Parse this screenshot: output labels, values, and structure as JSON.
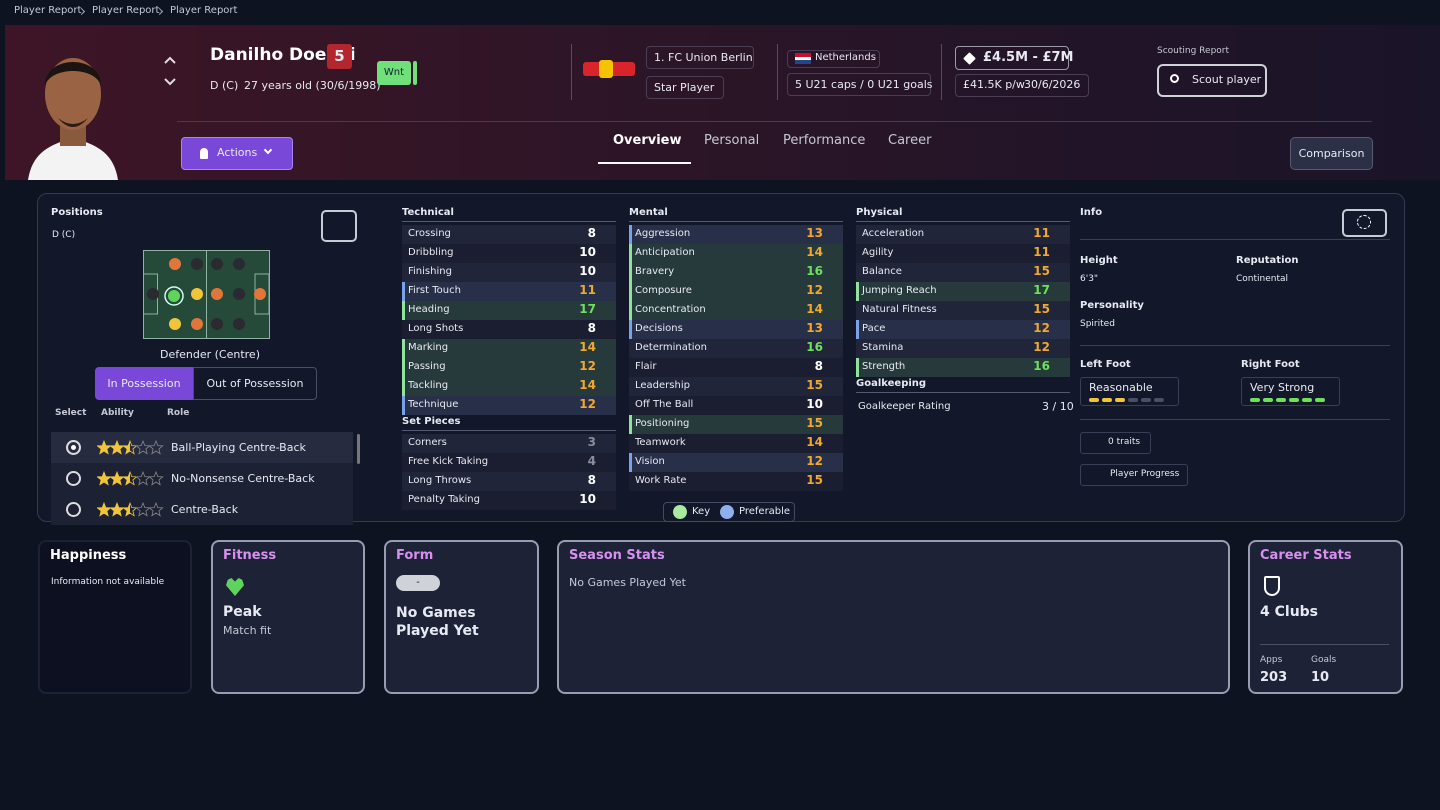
{
  "breadcrumb": [
    "Player Report",
    "Player Report",
    "Player Report"
  ],
  "player": {
    "name": "Danilho Doekhi",
    "number": "5",
    "position": "D (C)",
    "age": "27 years old (30/6/1998)",
    "status": "Wnt"
  },
  "club": {
    "name": "1. FC Union Berlin",
    "role": "Star Player"
  },
  "nation": {
    "name": "Netherlands",
    "caps": "5 U21 caps / 0 U21 goals"
  },
  "contract": {
    "value": "£4.5M - £7M",
    "wage": "£41.5K p/w",
    "expires": "30/6/2026"
  },
  "scouting": {
    "label": "Scouting Report",
    "button": "Scout player"
  },
  "actions": "Actions",
  "tabs": [
    "Overview",
    "Personal",
    "Performance",
    "Career"
  ],
  "comparison": "Comparison",
  "positions": {
    "title": "Positions",
    "code": "D (C)",
    "role_name": "Defender (Centre)",
    "toggle": [
      "In Possession",
      "Out of Possession"
    ],
    "headers": [
      "Select",
      "Ability",
      "Role"
    ],
    "roles": [
      {
        "name": "Ball-Playing Centre-Back",
        "stars": 2.5
      },
      {
        "name": "No-Nonsense Centre-Back",
        "stars": 2.5
      },
      {
        "name": "Centre-Back",
        "stars": 2.5
      }
    ]
  },
  "attributes": [
    {
      "title": "Technical",
      "rows": [
        [
          "Crossing",
          8,
          null
        ],
        [
          "Dribbling",
          10,
          null
        ],
        [
          "Finishing",
          10,
          null
        ],
        [
          "First Touch",
          11,
          "p"
        ],
        [
          "Heading",
          17,
          "k"
        ],
        [
          "Long Shots",
          8,
          null
        ],
        [
          "Marking",
          14,
          "k"
        ],
        [
          "Passing",
          12,
          "k"
        ],
        [
          "Tackling",
          14,
          "k"
        ],
        [
          "Technique",
          12,
          "p"
        ]
      ]
    },
    {
      "title": "Set Pieces",
      "rows": [
        [
          "Corners",
          3,
          null
        ],
        [
          "Free Kick Taking",
          4,
          null
        ],
        [
          "Long Throws",
          8,
          null
        ],
        [
          "Penalty Taking",
          10,
          null
        ]
      ]
    },
    {
      "title": "Mental",
      "rows": [
        [
          "Aggression",
          13,
          "p"
        ],
        [
          "Anticipation",
          14,
          "k"
        ],
        [
          "Bravery",
          16,
          "k"
        ],
        [
          "Composure",
          12,
          "k"
        ],
        [
          "Concentration",
          14,
          "k"
        ],
        [
          "Decisions",
          13,
          "p"
        ],
        [
          "Determination",
          16,
          null
        ],
        [
          "Flair",
          8,
          null
        ],
        [
          "Leadership",
          15,
          null
        ],
        [
          "Off The Ball",
          10,
          null
        ],
        [
          "Positioning",
          15,
          "k"
        ],
        [
          "Teamwork",
          14,
          null
        ],
        [
          "Vision",
          12,
          "p"
        ],
        [
          "Work Rate",
          15,
          null
        ]
      ]
    },
    {
      "title": "Physical",
      "rows": [
        [
          "Acceleration",
          11,
          null
        ],
        [
          "Agility",
          11,
          null
        ],
        [
          "Balance",
          15,
          null
        ],
        [
          "Jumping Reach",
          17,
          "k"
        ],
        [
          "Natural Fitness",
          15,
          null
        ],
        [
          "Pace",
          12,
          "p"
        ],
        [
          "Stamina",
          12,
          null
        ],
        [
          "Strength",
          16,
          "k"
        ]
      ]
    }
  ],
  "goalkeeping": {
    "title": "Goalkeeping",
    "label": "Goalkeeper Rating",
    "value": "3 / 10"
  },
  "legend": [
    "Key",
    "Preferable"
  ],
  "info": {
    "title": "Info",
    "height_label": "Height",
    "height": "6'3\"",
    "reputation_label": "Reputation",
    "reputation": "Continental",
    "personality_label": "Personality",
    "personality": "Spirited",
    "left_foot_label": "Left Foot",
    "left_foot": "Reasonable",
    "left_foot_level": 3,
    "right_foot_label": "Right Foot",
    "right_foot": "Very Strong",
    "right_foot_level": 6,
    "traits": "0 traits",
    "progress": "Player Progress"
  },
  "cards": {
    "happiness": {
      "title": "Happiness",
      "text": "Information not available"
    },
    "fitness": {
      "title": "Fitness",
      "value": "Peak",
      "text": "Match fit"
    },
    "form": {
      "title": "Form",
      "badge": "-",
      "text": "No Games Played Yet"
    },
    "season": {
      "title": "Season Stats",
      "text": "No Games Played Yet"
    },
    "career": {
      "title": "Career Stats",
      "clubs": "4 Clubs",
      "apps_label": "Apps",
      "apps": 203,
      "goals_label": "Goals",
      "goals": 10
    }
  }
}
